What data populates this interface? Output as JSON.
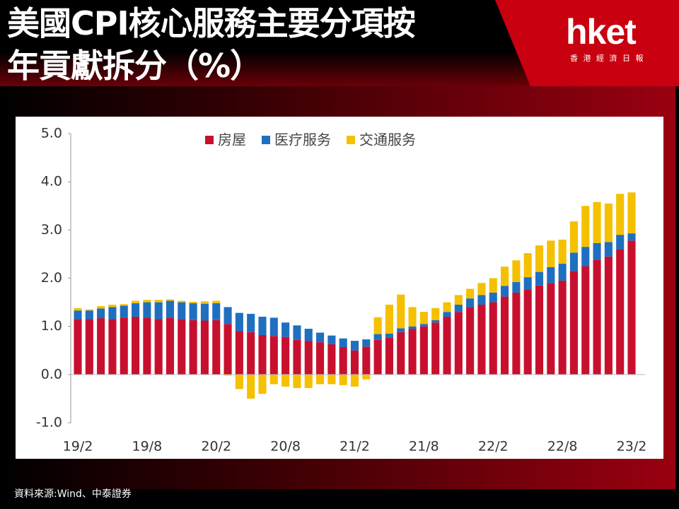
{
  "chart_data": {
    "type": "stacked_bar",
    "title": [
      "美國CPI核心服務主要分項按",
      "年貢獻拆分（%）"
    ],
    "brand": {
      "logo": "hket",
      "name": "香 港 經 濟 日 報"
    },
    "source": "資料來源:Wind、中泰證券",
    "categories": [
      "19/2",
      null,
      null,
      null,
      null,
      null,
      "19/8",
      null,
      null,
      null,
      null,
      null,
      "20/2",
      null,
      null,
      null,
      null,
      null,
      "20/8",
      null,
      null,
      null,
      null,
      null,
      "21/2",
      null,
      null,
      null,
      null,
      null,
      "21/8",
      null,
      null,
      null,
      null,
      null,
      "22/2",
      null,
      null,
      null,
      null,
      null,
      "22/8",
      null,
      null,
      null,
      null,
      null,
      "23/2"
    ],
    "series": [
      {
        "name": "房屋",
        "color": "#c8102e",
        "values": [
          1.15,
          1.15,
          1.17,
          1.15,
          1.18,
          1.2,
          1.18,
          1.15,
          1.18,
          1.15,
          1.13,
          1.12,
          1.13,
          1.05,
          0.9,
          0.88,
          0.82,
          0.8,
          0.78,
          0.72,
          0.7,
          0.67,
          0.63,
          0.57,
          0.5,
          0.58,
          0.72,
          0.77,
          0.88,
          0.95,
          1.0,
          1.08,
          1.2,
          1.3,
          1.4,
          1.45,
          1.5,
          1.62,
          1.7,
          1.77,
          1.85,
          1.9,
          1.95,
          2.15,
          2.25,
          2.38,
          2.45,
          2.6,
          2.78
        ]
      },
      {
        "name": "医疗服务",
        "color": "#1f6fc0",
        "values": [
          0.18,
          0.18,
          0.2,
          0.25,
          0.25,
          0.28,
          0.32,
          0.35,
          0.35,
          0.35,
          0.35,
          0.35,
          0.35,
          0.35,
          0.38,
          0.38,
          0.38,
          0.38,
          0.3,
          0.3,
          0.25,
          0.2,
          0.18,
          0.18,
          0.2,
          0.15,
          0.12,
          0.08,
          0.08,
          0.05,
          0.05,
          0.05,
          0.1,
          0.15,
          0.18,
          0.2,
          0.2,
          0.22,
          0.22,
          0.25,
          0.28,
          0.33,
          0.35,
          0.38,
          0.4,
          0.35,
          0.3,
          0.3,
          0.15
        ]
      },
      {
        "name": "交通服务",
        "color": "#f5c000",
        "values": [
          0.05,
          0.02,
          0.05,
          0.05,
          0.03,
          0.05,
          0.05,
          0.05,
          0.03,
          0.03,
          0.03,
          0.05,
          0.05,
          -0.02,
          -0.3,
          -0.5,
          -0.4,
          -0.2,
          -0.25,
          -0.28,
          -0.28,
          -0.2,
          -0.2,
          -0.22,
          -0.25,
          -0.1,
          0.35,
          0.6,
          0.7,
          0.4,
          0.25,
          0.25,
          0.2,
          0.2,
          0.2,
          0.25,
          0.3,
          0.4,
          0.45,
          0.5,
          0.55,
          0.55,
          0.5,
          0.65,
          0.85,
          0.85,
          0.8,
          0.85,
          0.85
        ]
      }
    ],
    "ylim": [
      -1,
      5
    ],
    "yticks": [
      {
        "value": -1,
        "label": "-1.0"
      },
      {
        "value": 0,
        "label": "0.0"
      },
      {
        "value": 1,
        "label": "1.0"
      },
      {
        "value": 2,
        "label": "2.0"
      },
      {
        "value": 3,
        "label": "3.0"
      },
      {
        "value": 4,
        "label": "4.0"
      },
      {
        "value": 5,
        "label": "5.0"
      }
    ],
    "legend": "top",
    "grid": false
  }
}
